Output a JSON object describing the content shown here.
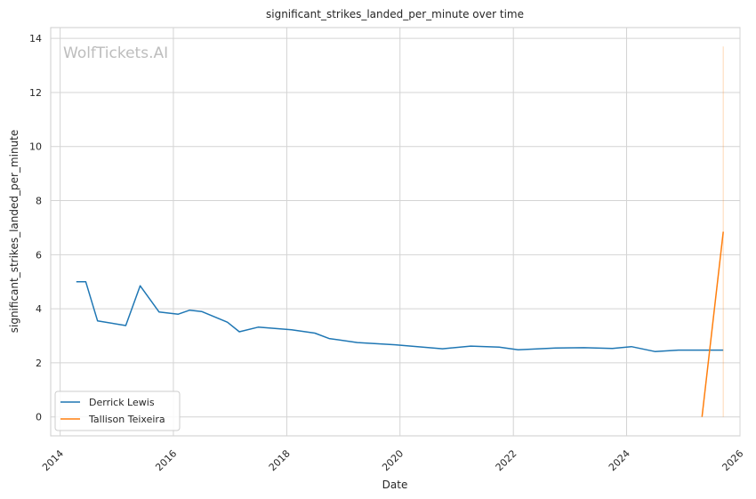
{
  "chart_data": {
    "type": "line",
    "title": "significant_strikes_landed_per_minute over time",
    "xlabel": "Date",
    "ylabel": "significant_strikes_landed_per_minute",
    "watermark": "WolfTickets.AI",
    "xlim": [
      "2013-11-01",
      "2026-01-01"
    ],
    "ylim": [
      -0.7,
      14.4
    ],
    "x_ticks": [
      "2014",
      "2016",
      "2018",
      "2020",
      "2022",
      "2024",
      "2026"
    ],
    "y_ticks": [
      "0",
      "2",
      "4",
      "6",
      "8",
      "10",
      "12",
      "14"
    ],
    "grid": true,
    "legend_position": "lower-left",
    "series": [
      {
        "name": "Derrick Lewis",
        "color": "#1f77b4",
        "points": [
          [
            "2014-04-15",
            5.0
          ],
          [
            "2014-06-15",
            5.0
          ],
          [
            "2014-08-30",
            3.55
          ],
          [
            "2015-02-28",
            3.38
          ],
          [
            "2015-06-01",
            4.85
          ],
          [
            "2015-10-01",
            3.88
          ],
          [
            "2016-02-01",
            3.8
          ],
          [
            "2016-04-15",
            3.95
          ],
          [
            "2016-07-01",
            3.9
          ],
          [
            "2016-12-15",
            3.5
          ],
          [
            "2017-03-01",
            3.15
          ],
          [
            "2017-07-01",
            3.32
          ],
          [
            "2018-02-01",
            3.22
          ],
          [
            "2018-07-01",
            3.1
          ],
          [
            "2018-10-01",
            2.9
          ],
          [
            "2019-04-01",
            2.75
          ],
          [
            "2019-12-01",
            2.67
          ],
          [
            "2020-10-01",
            2.52
          ],
          [
            "2021-04-01",
            2.62
          ],
          [
            "2021-10-01",
            2.58
          ],
          [
            "2022-02-01",
            2.48
          ],
          [
            "2022-10-01",
            2.55
          ],
          [
            "2023-04-01",
            2.56
          ],
          [
            "2023-10-01",
            2.53
          ],
          [
            "2024-02-01",
            2.6
          ],
          [
            "2024-07-01",
            2.42
          ],
          [
            "2024-12-01",
            2.47
          ],
          [
            "2025-07-01",
            2.47
          ],
          [
            "2025-09-15",
            2.47
          ]
        ]
      },
      {
        "name": "Tallison Teixeira",
        "color": "#ff7f0e",
        "points": [
          [
            "2025-05-01",
            0.0
          ],
          [
            "2025-09-15",
            6.85
          ]
        ],
        "band": {
          "x": "2025-09-15",
          "low": 0.0,
          "high": 13.7
        }
      }
    ]
  }
}
